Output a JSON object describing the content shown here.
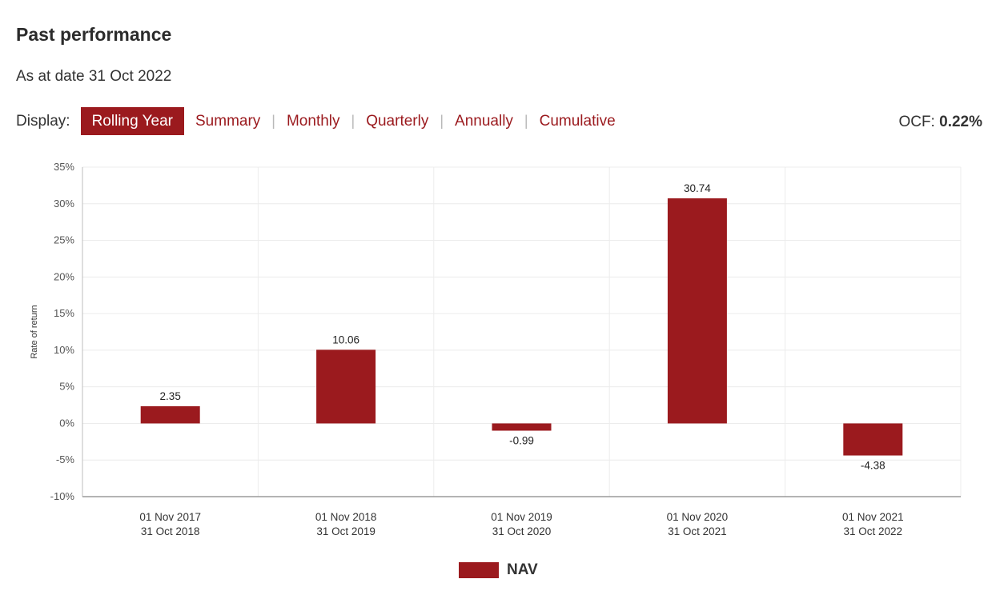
{
  "header": {
    "title": "Past performance",
    "as_at": "As at date 31 Oct 2022"
  },
  "display": {
    "label": "Display:",
    "tabs": [
      {
        "label": "Rolling Year",
        "active": true
      },
      {
        "label": "Summary",
        "active": false
      },
      {
        "label": "Monthly",
        "active": false
      },
      {
        "label": "Quarterly",
        "active": false
      },
      {
        "label": "Annually",
        "active": false
      },
      {
        "label": "Cumulative",
        "active": false
      }
    ],
    "separator": "|"
  },
  "ocf": {
    "label": "OCF: ",
    "value": "0.22%"
  },
  "colors": {
    "accent": "#9b1a1e",
    "grid": "#ececec"
  },
  "chart_data": {
    "type": "bar",
    "categories": [
      [
        "01 Nov 2017",
        "31 Oct 2018"
      ],
      [
        "01 Nov 2018",
        "31 Oct 2019"
      ],
      [
        "01 Nov 2019",
        "31 Oct 2020"
      ],
      [
        "01 Nov 2020",
        "31 Oct 2021"
      ],
      [
        "01 Nov 2021",
        "31 Oct 2022"
      ]
    ],
    "series": [
      {
        "name": "NAV",
        "values": [
          2.35,
          10.06,
          -0.99,
          30.74,
          -4.38
        ],
        "labels": [
          "2.35",
          "10.06",
          "-0.99",
          "30.74",
          "-4.38"
        ]
      }
    ],
    "ylabel": "Rate of return",
    "ylim": [
      -10,
      35
    ],
    "yticks": [
      35,
      30,
      25,
      20,
      15,
      10,
      5,
      0,
      -5,
      -10
    ],
    "ytick_labels": [
      "35%",
      "30%",
      "25%",
      "20%",
      "15%",
      "10%",
      "5%",
      "0%",
      "-5%",
      "-10%"
    ],
    "grid": true,
    "legend": "bottom-center"
  }
}
